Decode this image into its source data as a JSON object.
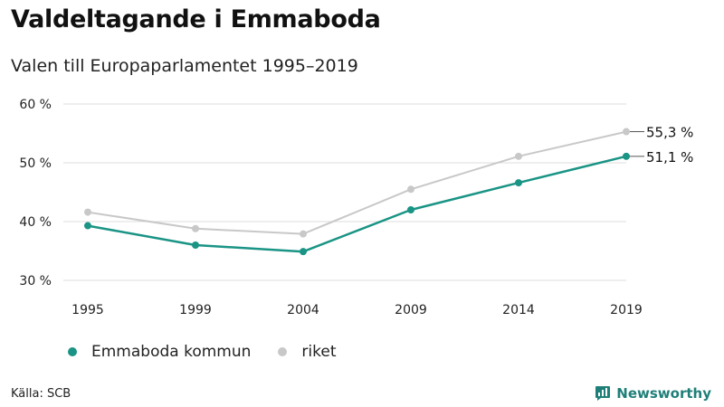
{
  "header": {
    "title": "Valdeltagande i Emmaboda",
    "subtitle": "Valen till Europaparlamentet 1995–2019"
  },
  "footer": {
    "source": "Källa: SCB",
    "brand": "Newsworthy"
  },
  "colors": {
    "emmaboda": "#1a9485",
    "riket": "#c8c8c8",
    "brand": "#1f7f78"
  },
  "chart_data": {
    "type": "line",
    "title": "Valdeltagande i Emmaboda",
    "subtitle": "Valen till Europaparlamentet 1995–2019",
    "categories": [
      "1995",
      "1999",
      "2004",
      "2009",
      "2014",
      "2019"
    ],
    "ylim": [
      30,
      60
    ],
    "yticks": [
      30,
      40,
      50,
      60
    ],
    "ytick_labels": [
      "30 %",
      "40 %",
      "50 %",
      "60 %"
    ],
    "grid": true,
    "legend_position": "bottom-left",
    "series": [
      {
        "name": "Emmaboda kommun",
        "color": "#1a9485",
        "values": [
          39.3,
          36.0,
          34.9,
          42.0,
          46.6,
          51.1
        ],
        "end_label": "51,1 %"
      },
      {
        "name": "riket",
        "color": "#c8c8c8",
        "values": [
          41.6,
          38.8,
          37.9,
          45.5,
          51.1,
          55.3
        ],
        "end_label": "55,3 %"
      }
    ]
  }
}
